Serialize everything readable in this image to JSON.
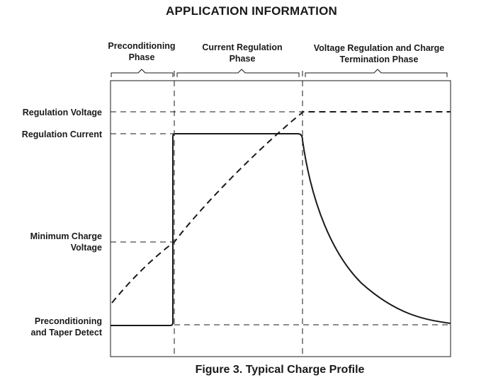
{
  "heading": "APPLICATION INFORMATION",
  "phases": {
    "preconditioning": [
      "Preconditioning",
      "Phase"
    ],
    "current_regulation": [
      "Current Regulation",
      "Phase"
    ],
    "voltage_regulation": [
      "Voltage Regulation and Charge",
      "Termination Phase"
    ]
  },
  "levels": {
    "regulation_voltage": [
      "Regulation Voltage"
    ],
    "regulation_current": [
      "Regulation Current"
    ],
    "minimum_charge_voltage": [
      "Minimum Charge",
      "Voltage"
    ],
    "preconditioning_taper": [
      "Preconditioning",
      "and Taper Detect"
    ]
  },
  "caption": "Figure 3. Typical Charge Profile"
}
